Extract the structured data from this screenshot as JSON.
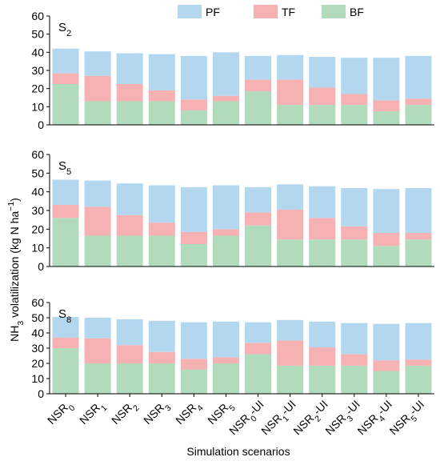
{
  "legend": {
    "items": [
      {
        "name": "PF",
        "color": "#b3d7ee"
      },
      {
        "name": "TF",
        "color": "#f6b1b3"
      },
      {
        "name": "BF",
        "color": "#b2dbbc"
      }
    ]
  },
  "ylabel": "NH3 volatilization (kg N ha−1)",
  "xlabel": "Simulation scenarios",
  "chart_data": {
    "type": "bar",
    "stacked": true,
    "categories": [
      "NSR0",
      "NSR1",
      "NSR2",
      "NSR3",
      "NSR4",
      "NSR5",
      "NSR0-UI",
      "NSR1-UI",
      "NSR2-UI",
      "NSR3-UI",
      "NSR4-UI",
      "NSR5-UI"
    ],
    "ylim": [
      0,
      60
    ],
    "yticks": [
      0,
      10,
      20,
      30,
      40,
      50,
      60
    ],
    "grid": false,
    "legend_position": "top-center",
    "panels": [
      {
        "label": "S2",
        "series": [
          {
            "name": "BF",
            "color": "#b2dbbc",
            "values": [
              22.5,
              13,
              13,
              13,
              8,
              13,
              18.5,
              11,
              11,
              11,
              7.5,
              11
            ]
          },
          {
            "name": "TF",
            "color": "#f6b1b3",
            "values": [
              6,
              14,
              9.5,
              6,
              6,
              3,
              6.5,
              14,
              9.5,
              6,
              6,
              3.5
            ]
          },
          {
            "name": "PF",
            "color": "#b3d7ee",
            "values": [
              13.5,
              13.5,
              17,
              20,
              24,
              24,
              13,
              13.5,
              17,
              20,
              23.5,
              23.5
            ]
          }
        ]
      },
      {
        "label": "S5",
        "series": [
          {
            "name": "BF",
            "color": "#b2dbbc",
            "values": [
              26,
              16.5,
              16.5,
              16.5,
              12,
              16.5,
              22,
              14.5,
              14.5,
              14.5,
              11,
              14.5
            ]
          },
          {
            "name": "TF",
            "color": "#f6b1b3",
            "values": [
              7,
              15.5,
              11,
              7,
              6.5,
              3.5,
              7,
              16,
              11.5,
              7,
              7,
              3.5
            ]
          },
          {
            "name": "PF",
            "color": "#b3d7ee",
            "values": [
              13.5,
              14,
              17,
              20,
              24,
              23.5,
              13.5,
              13.5,
              17,
              20.5,
              23.5,
              24
            ]
          }
        ]
      },
      {
        "label": "S8",
        "series": [
          {
            "name": "BF",
            "color": "#b2dbbc",
            "values": [
              30,
              20,
              20,
              20,
              16,
              20,
              26,
              18.5,
              18.5,
              18.5,
              15,
              18.5
            ]
          },
          {
            "name": "TF",
            "color": "#f6b1b3",
            "values": [
              7,
              16.5,
              12,
              7.5,
              7,
              4,
              7.5,
              16.5,
              12,
              7.5,
              7,
              4
            ]
          },
          {
            "name": "PF",
            "color": "#b3d7ee",
            "values": [
              13.5,
              13.5,
              17,
              20.5,
              24,
              23.5,
              13.5,
              13.5,
              17,
              20.5,
              24,
              24
            ]
          }
        ]
      }
    ]
  }
}
